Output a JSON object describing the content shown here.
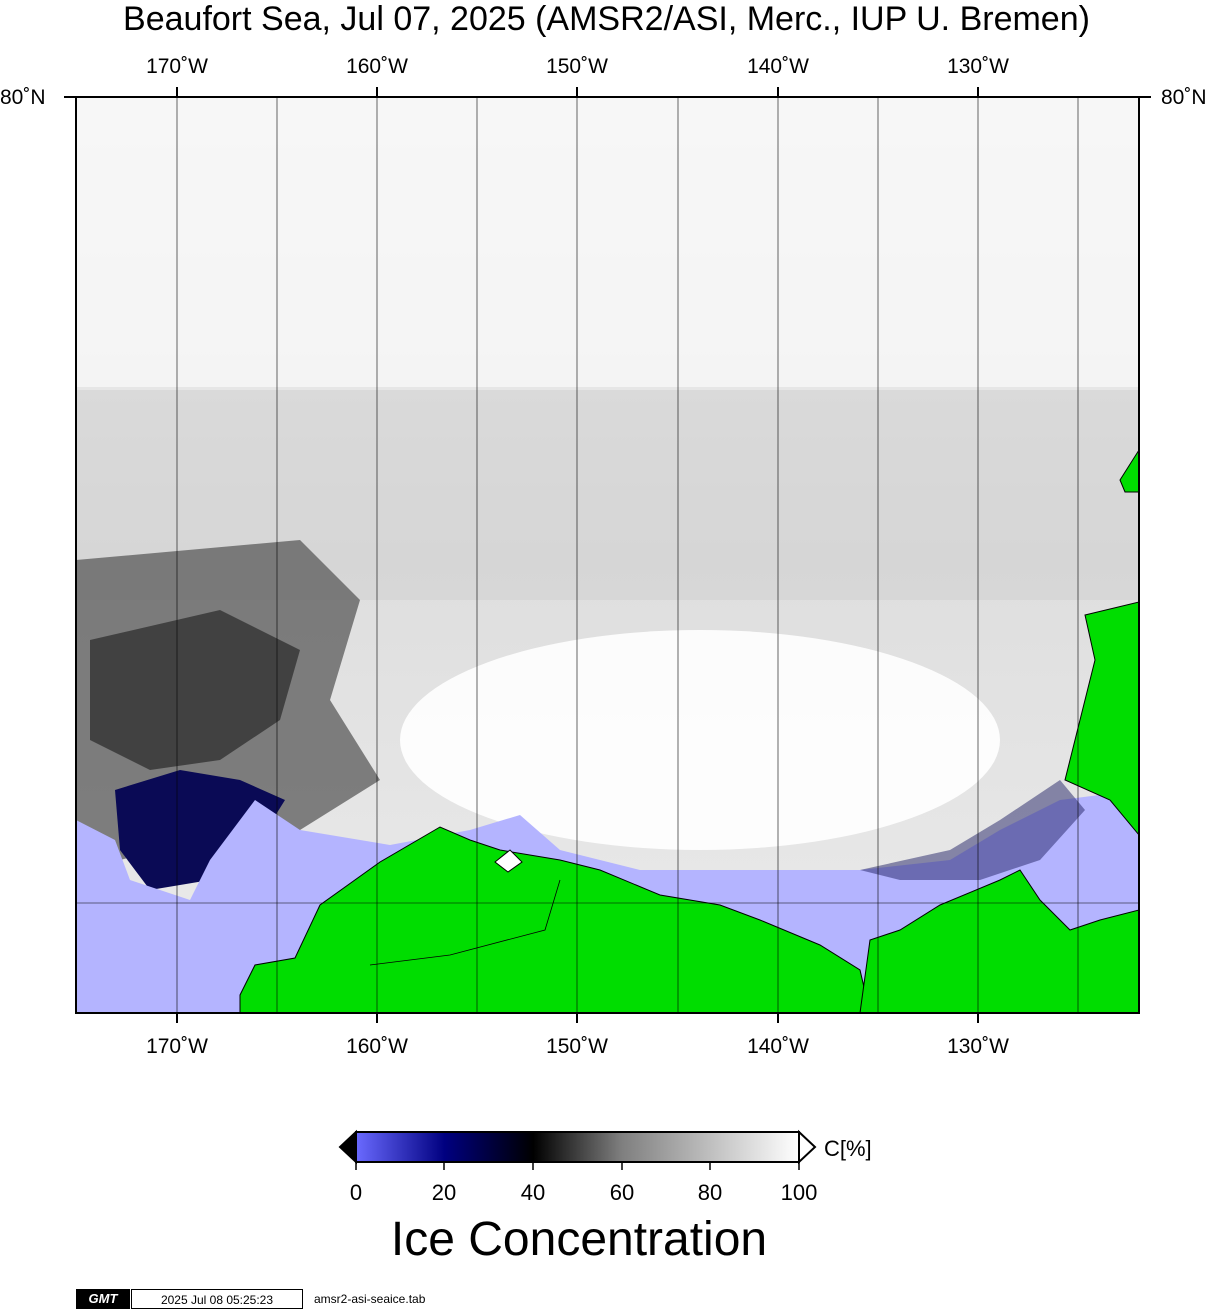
{
  "title": "Beaufort Sea, Jul 07, 2025 (AMSR2/ASI, Merc., IUP U. Bremen)",
  "longitude_ticks": [
    "170˚W",
    "160˚W",
    "150˚W",
    "140˚W",
    "130˚W"
  ],
  "latitude_label": "80˚N",
  "colorbar": {
    "unit_label": "C[%]",
    "tick_labels": [
      "0",
      "20",
      "40",
      "60",
      "80",
      "100"
    ],
    "title": "Ice Concentration",
    "stops": [
      {
        "value": 0,
        "color": "#6a6aff"
      },
      {
        "value": 20,
        "color": "#000080"
      },
      {
        "value": 40,
        "color": "#000000"
      },
      {
        "value": 60,
        "color": "#7f7f7f"
      },
      {
        "value": 100,
        "color": "#ffffff"
      }
    ]
  },
  "map_colors": {
    "land": "#00dd00",
    "open_water": "#b4b4ff",
    "ice_high": "#ffffff",
    "ice_low": "#000080"
  },
  "footer": {
    "logo": "GMT",
    "timestamp": "2025 Jul 08 05:25:23",
    "filename": "amsr2-asi-seaice.tab"
  }
}
